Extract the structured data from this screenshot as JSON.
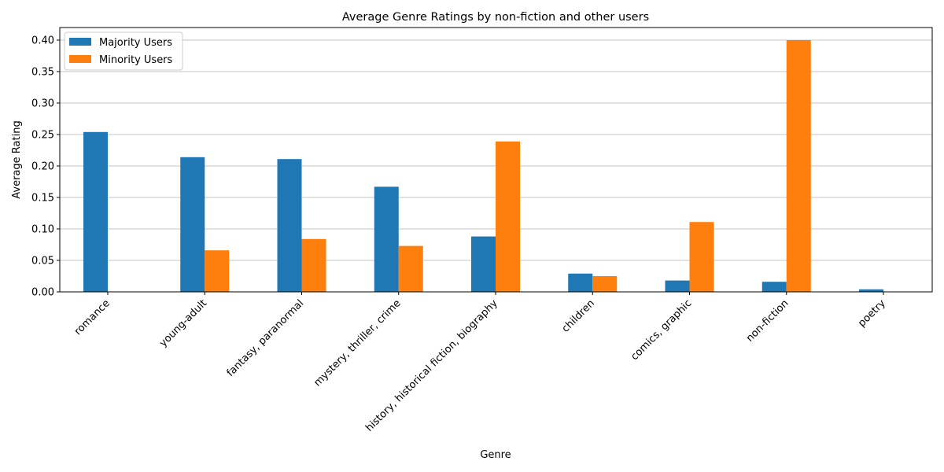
{
  "chart_data": {
    "type": "bar",
    "title": "Average Genre Ratings by non-fiction and other users",
    "xlabel": "Genre",
    "ylabel": "Average Rating",
    "categories": [
      "romance",
      "young-adult",
      "fantasy, paranormal",
      "mystery, thriller, crime",
      "history, historical fiction, biography",
      "children",
      "comics, graphic",
      "non-fiction",
      "poetry"
    ],
    "series": [
      {
        "name": "Majority Users",
        "color": "#1f77b4",
        "values": [
          0.254,
          0.214,
          0.211,
          0.167,
          0.088,
          0.029,
          0.018,
          0.016,
          0.004
        ]
      },
      {
        "name": "Minority Users",
        "color": "#ff7f0e",
        "values": [
          0.0,
          0.066,
          0.084,
          0.073,
          0.239,
          0.025,
          0.111,
          0.4,
          0.0
        ]
      }
    ],
    "ylim": [
      0,
      0.42
    ],
    "yticks": [
      "0.00",
      "0.05",
      "0.10",
      "0.15",
      "0.20",
      "0.25",
      "0.30",
      "0.35",
      "0.40"
    ],
    "grid": "horizontal",
    "legend_position": "top-left"
  }
}
